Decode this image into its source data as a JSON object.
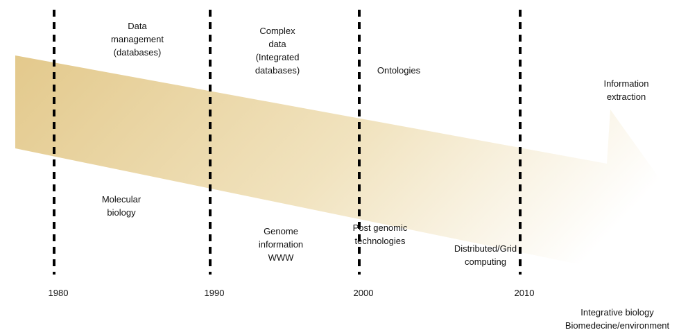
{
  "timeline": {
    "years": [
      "1980",
      "1990",
      "2000",
      "2010"
    ],
    "top_labels": [
      [
        "Data",
        "management",
        "(databases)"
      ],
      [
        "Complex",
        "data",
        "(Integrated",
        "databases)"
      ],
      [
        "Ontologies"
      ],
      [
        "Information",
        "extraction"
      ]
    ],
    "bottom_labels": [
      [
        "Molecular",
        "biology"
      ],
      [
        "Genome",
        "information",
        "WWW"
      ],
      [
        "Post genomic",
        "technologies"
      ],
      [
        "Distributed/Grid",
        "computing"
      ],
      [
        "Integrative biology",
        "Biomedecine/environment"
      ]
    ]
  }
}
